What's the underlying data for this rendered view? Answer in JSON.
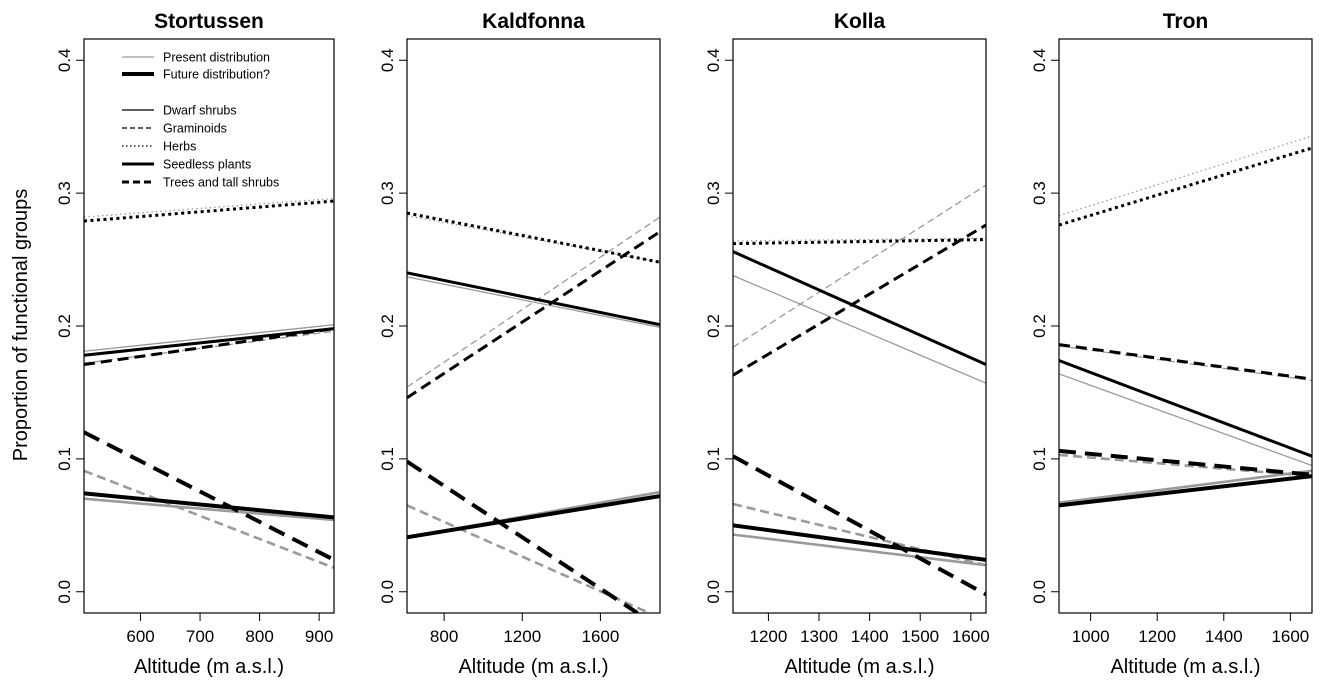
{
  "y_axis_label": "Proportion of functional groups",
  "legend": {
    "items": [
      {
        "label": "Present distribution",
        "color": "#9a9a9a",
        "dash": "solid",
        "weight": "thin"
      },
      {
        "label": "Future distribution?",
        "color": "#000000",
        "dash": "solid",
        "weight": "thick"
      },
      {
        "label": "Dwarf shrubs",
        "color": "#000000",
        "dash": "solid",
        "weight": "thin"
      },
      {
        "label": "Graminoids",
        "color": "#000000",
        "dash": "dashed",
        "weight": "thin"
      },
      {
        "label": "Herbs",
        "color": "#000000",
        "dash": "dotted",
        "weight": "thin"
      },
      {
        "label": "Seedless plants",
        "color": "#000000",
        "dash": "solid",
        "weight": "thick"
      },
      {
        "label": "Trees and tall shrubs",
        "color": "#000000",
        "dash": "dashed",
        "weight": "thick"
      }
    ]
  },
  "colors": {
    "present": "#9a9a9a",
    "future": "#000000"
  },
  "chart_data": [
    {
      "type": "line",
      "title": "Stortussen",
      "xlabel": "Altitude (m a.s.l.)",
      "xlim": [
        505,
        925
      ],
      "xticks": [
        600,
        700,
        800,
        900
      ],
      "ylim": [
        -0.016,
        0.416
      ],
      "yticks": [
        0.0,
        0.1,
        0.2,
        0.3,
        0.4
      ],
      "ytick_labels": [
        "0.0",
        "0.1",
        "0.2",
        "0.3",
        "0.4"
      ],
      "series": [
        {
          "group": "Herbs",
          "dist": "present",
          "x": [
            505,
            925
          ],
          "y": [
            0.282,
            0.296
          ]
        },
        {
          "group": "Herbs",
          "dist": "future",
          "x": [
            505,
            925
          ],
          "y": [
            0.279,
            0.294
          ]
        },
        {
          "group": "Dwarf shrubs",
          "dist": "present",
          "x": [
            505,
            925
          ],
          "y": [
            0.181,
            0.201
          ]
        },
        {
          "group": "Dwarf shrubs",
          "dist": "future",
          "x": [
            505,
            925
          ],
          "y": [
            0.178,
            0.198
          ]
        },
        {
          "group": "Graminoids",
          "dist": "present",
          "x": [
            505,
            925
          ],
          "y": [
            0.172,
            0.196
          ]
        },
        {
          "group": "Graminoids",
          "dist": "future",
          "x": [
            505,
            925
          ],
          "y": [
            0.171,
            0.198
          ]
        },
        {
          "group": "Trees and tall shrubs",
          "dist": "present",
          "x": [
            505,
            925
          ],
          "y": [
            0.091,
            0.018
          ]
        },
        {
          "group": "Trees and tall shrubs",
          "dist": "future",
          "x": [
            505,
            925
          ],
          "y": [
            0.12,
            0.024
          ]
        },
        {
          "group": "Seedless plants",
          "dist": "present",
          "x": [
            505,
            925
          ],
          "y": [
            0.07,
            0.054
          ]
        },
        {
          "group": "Seedless plants",
          "dist": "future",
          "x": [
            505,
            925
          ],
          "y": [
            0.074,
            0.056
          ]
        }
      ]
    },
    {
      "type": "line",
      "title": "Kaldfonna",
      "xlabel": "Altitude (m a.s.l.)",
      "xlim": [
        610,
        1905
      ],
      "xticks": [
        800,
        1200,
        1600
      ],
      "ylim": [
        -0.016,
        0.416
      ],
      "yticks": [
        0.0,
        0.1,
        0.2,
        0.3,
        0.4
      ],
      "ytick_labels": [
        "0.0",
        "0.1",
        "0.2",
        "0.3",
        "0.4"
      ],
      "series": [
        {
          "group": "Herbs",
          "dist": "present",
          "x": [
            610,
            1905
          ],
          "y": [
            0.283,
            0.248
          ]
        },
        {
          "group": "Herbs",
          "dist": "future",
          "x": [
            610,
            1905
          ],
          "y": [
            0.285,
            0.248
          ]
        },
        {
          "group": "Dwarf shrubs",
          "dist": "present",
          "x": [
            610,
            1905
          ],
          "y": [
            0.237,
            0.199
          ]
        },
        {
          "group": "Dwarf shrubs",
          "dist": "future",
          "x": [
            610,
            1905
          ],
          "y": [
            0.24,
            0.201
          ]
        },
        {
          "group": "Graminoids",
          "dist": "present",
          "x": [
            610,
            1905
          ],
          "y": [
            0.154,
            0.282
          ]
        },
        {
          "group": "Graminoids",
          "dist": "future",
          "x": [
            610,
            1905
          ],
          "y": [
            0.146,
            0.271
          ]
        },
        {
          "group": "Trees and tall shrubs",
          "dist": "present",
          "x": [
            610,
            1850
          ],
          "y": [
            0.065,
            -0.016
          ]
        },
        {
          "group": "Trees and tall shrubs",
          "dist": "future",
          "x": [
            610,
            1790
          ],
          "y": [
            0.098,
            -0.016
          ]
        },
        {
          "group": "Seedless plants",
          "dist": "present",
          "x": [
            610,
            1905
          ],
          "y": [
            0.041,
            0.075
          ]
        },
        {
          "group": "Seedless plants",
          "dist": "future",
          "x": [
            610,
            1905
          ],
          "y": [
            0.041,
            0.072
          ]
        }
      ]
    },
    {
      "type": "line",
      "title": "Kolla",
      "xlabel": "Altitude (m a.s.l.)",
      "xlim": [
        1130,
        1630
      ],
      "xticks": [
        1200,
        1300,
        1400,
        1500,
        1600
      ],
      "ylim": [
        -0.016,
        0.416
      ],
      "yticks": [
        0.0,
        0.1,
        0.2,
        0.3,
        0.4
      ],
      "ytick_labels": [
        "0.0",
        "0.1",
        "0.2",
        "0.3",
        "0.4"
      ],
      "series": [
        {
          "group": "Herbs",
          "dist": "present",
          "x": [
            1130,
            1630
          ],
          "y": [
            0.264,
            0.266
          ]
        },
        {
          "group": "Herbs",
          "dist": "future",
          "x": [
            1130,
            1630
          ],
          "y": [
            0.262,
            0.265
          ]
        },
        {
          "group": "Dwarf shrubs",
          "dist": "present",
          "x": [
            1130,
            1630
          ],
          "y": [
            0.238,
            0.157
          ]
        },
        {
          "group": "Dwarf shrubs",
          "dist": "future",
          "x": [
            1130,
            1630
          ],
          "y": [
            0.256,
            0.171
          ]
        },
        {
          "group": "Graminoids",
          "dist": "present",
          "x": [
            1130,
            1630
          ],
          "y": [
            0.184,
            0.306
          ]
        },
        {
          "group": "Graminoids",
          "dist": "future",
          "x": [
            1130,
            1630
          ],
          "y": [
            0.163,
            0.276
          ]
        },
        {
          "group": "Trees and tall shrubs",
          "dist": "present",
          "x": [
            1130,
            1630
          ],
          "y": [
            0.066,
            0.02
          ]
        },
        {
          "group": "Trees and tall shrubs",
          "dist": "future",
          "x": [
            1130,
            1630
          ],
          "y": [
            0.102,
            -0.002
          ]
        },
        {
          "group": "Seedless plants",
          "dist": "present",
          "x": [
            1130,
            1630
          ],
          "y": [
            0.043,
            0.02
          ]
        },
        {
          "group": "Seedless plants",
          "dist": "future",
          "x": [
            1130,
            1630
          ],
          "y": [
            0.05,
            0.024
          ]
        }
      ]
    },
    {
      "type": "line",
      "title": "Tron",
      "xlabel": "Altitude (m a.s.l.)",
      "xlim": [
        905,
        1665
      ],
      "xticks": [
        1000,
        1200,
        1400,
        1600
      ],
      "ylim": [
        -0.016,
        0.416
      ],
      "yticks": [
        0.0,
        0.1,
        0.2,
        0.3,
        0.4
      ],
      "ytick_labels": [
        "0.0",
        "0.1",
        "0.2",
        "0.3",
        "0.4"
      ],
      "series": [
        {
          "group": "Herbs",
          "dist": "present",
          "x": [
            905,
            1665
          ],
          "y": [
            0.283,
            0.343
          ]
        },
        {
          "group": "Herbs",
          "dist": "future",
          "x": [
            905,
            1665
          ],
          "y": [
            0.276,
            0.334
          ]
        },
        {
          "group": "Graminoids",
          "dist": "present",
          "x": [
            905,
            1665
          ],
          "y": [
            0.185,
            0.159
          ]
        },
        {
          "group": "Graminoids",
          "dist": "future",
          "x": [
            905,
            1665
          ],
          "y": [
            0.186,
            0.16
          ]
        },
        {
          "group": "Dwarf shrubs",
          "dist": "present",
          "x": [
            905,
            1665
          ],
          "y": [
            0.164,
            0.095
          ]
        },
        {
          "group": "Dwarf shrubs",
          "dist": "future",
          "x": [
            905,
            1665
          ],
          "y": [
            0.174,
            0.102
          ]
        },
        {
          "group": "Trees and tall shrubs",
          "dist": "present",
          "x": [
            905,
            1665
          ],
          "y": [
            0.103,
            0.087
          ]
        },
        {
          "group": "Trees and tall shrubs",
          "dist": "future",
          "x": [
            905,
            1665
          ],
          "y": [
            0.106,
            0.088
          ]
        },
        {
          "group": "Seedless plants",
          "dist": "present",
          "x": [
            905,
            1665
          ],
          "y": [
            0.067,
            0.091
          ]
        },
        {
          "group": "Seedless plants",
          "dist": "future",
          "x": [
            905,
            1665
          ],
          "y": [
            0.065,
            0.087
          ]
        }
      ]
    }
  ]
}
